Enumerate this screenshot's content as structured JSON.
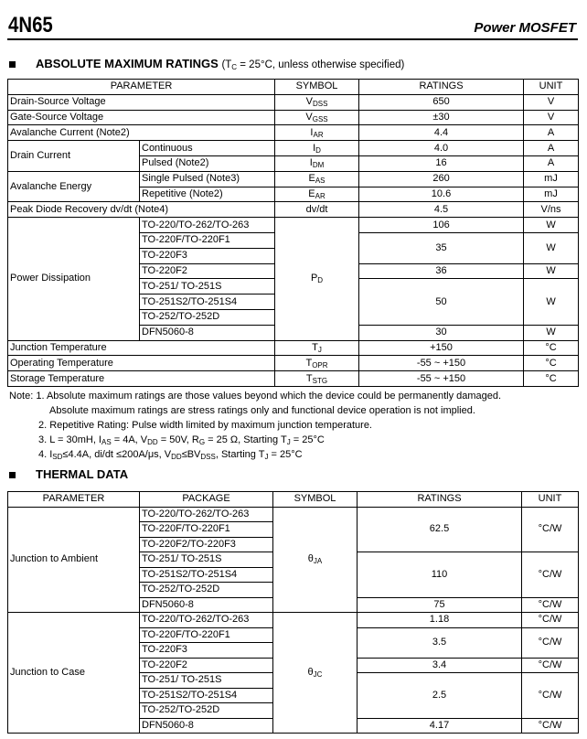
{
  "header": {
    "title": "4N65",
    "subtitle": "Power MOSFET"
  },
  "amr": {
    "heading": "ABSOLUTE MAXIMUM RATINGS",
    "condition": [
      "(T",
      "C",
      " = 25°C, unless otherwise specified)"
    ],
    "columns": [
      "PARAMETER",
      "SYMBOL",
      "RATINGS",
      "UNIT"
    ],
    "rows": [
      {
        "param": "Drain-Source Voltage",
        "symbol": [
          "V",
          "DSS"
        ],
        "rating": "650",
        "unit": "V"
      },
      {
        "param": "Gate-Source Voltage",
        "symbol": [
          "V",
          "GSS"
        ],
        "rating": "±30",
        "unit": "V"
      },
      {
        "param": "Avalanche Current (Note2)",
        "symbol": [
          "I",
          "AR"
        ],
        "rating": "4.4",
        "unit": "A"
      },
      {
        "param": "Drain Current",
        "sub": [
          {
            "cond": "Continuous",
            "symbol": [
              "I",
              "D"
            ],
            "rating": "4.0",
            "unit": "A"
          },
          {
            "cond": "Pulsed (Note2)",
            "symbol": [
              "I",
              "DM"
            ],
            "rating": "16",
            "unit": "A"
          }
        ]
      },
      {
        "param": "Avalanche Energy",
        "sub": [
          {
            "cond": "Single Pulsed (Note3)",
            "symbol": [
              "E",
              "AS"
            ],
            "rating": "260",
            "unit": "mJ"
          },
          {
            "cond": "Repetitive (Note2)",
            "symbol": [
              "E",
              "AR"
            ],
            "rating": "10.6",
            "unit": "mJ"
          }
        ]
      },
      {
        "param": "Peak Diode Recovery dv/dt (Note4)",
        "symbol": [
          "dv/dt",
          ""
        ],
        "rating": "4.5",
        "unit": "V/ns"
      },
      {
        "param": "Power Dissipation",
        "symbol": [
          "P",
          "D"
        ],
        "groups": [
          {
            "packages": [
              "TO-220/TO-262/TO-263"
            ],
            "rating": "106",
            "unit": "W"
          },
          {
            "packages": [
              "TO-220F/TO-220F1",
              "TO-220F3"
            ],
            "rating": "35",
            "unit": "W"
          },
          {
            "packages": [
              "TO-220F2"
            ],
            "rating": "36",
            "unit": "W"
          },
          {
            "packages": [
              "TO-251/ TO-251S",
              "TO-251S2/TO-251S4",
              "TO-252/TO-252D"
            ],
            "rating": "50",
            "unit": "W"
          },
          {
            "packages": [
              "DFN5060-8"
            ],
            "rating": "30",
            "unit": "W"
          }
        ]
      },
      {
        "param": "Junction Temperature",
        "symbol": [
          "T",
          "J"
        ],
        "rating": "+150",
        "unit": "°C"
      },
      {
        "param": "Operating Temperature",
        "symbol": [
          "T",
          "OPR"
        ],
        "rating": "-55 ~ +150",
        "unit": "°C"
      },
      {
        "param": "Storage Temperature",
        "symbol": [
          "T",
          "STG"
        ],
        "rating": "-55 ~ +150",
        "unit": "°C"
      }
    ]
  },
  "notes": [
    [
      "Note: 1. Absolute maximum ratings are those values beyond which the device could be permanently damaged."
    ],
    [
      "Absolute maximum ratings are stress ratings only and functional device operation is not implied."
    ],
    [
      "2. Repetitive Rating: Pulse width limited by maximum junction temperature."
    ],
    [
      "3. L = 30mH, I",
      "AS",
      " = 4A, V",
      "DD",
      " = 50V, R",
      "G",
      " = 25 Ω, Starting T",
      "J",
      " = 25°C"
    ],
    [
      "4. I",
      "SD",
      "≤4.4A, di/dt ≤200A/μs, V",
      "DD",
      "≤BV",
      "DSS",
      ", Starting T",
      "J",
      " = 25°C"
    ]
  ],
  "thermal": {
    "heading": "THERMAL DATA",
    "columns": [
      "PARAMETER",
      "PACKAGE",
      "SYMBOL",
      "RATINGS",
      "UNIT"
    ],
    "rows": [
      {
        "param": "Junction to Ambient",
        "symbol": [
          "θ",
          "JA"
        ],
        "groups": [
          {
            "packages": [
              "TO-220/TO-262/TO-263",
              "TO-220F/TO-220F1",
              "TO-220F2/TO-220F3"
            ],
            "rating": "62.5",
            "unit": "°C/W"
          },
          {
            "packages": [
              "TO-251/ TO-251S",
              "TO-251S2/TO-251S4",
              "TO-252/TO-252D"
            ],
            "rating": "110",
            "unit": "°C/W"
          },
          {
            "packages": [
              "DFN5060-8"
            ],
            "rating": "75",
            "unit": "°C/W"
          }
        ]
      },
      {
        "param": "Junction to Case",
        "symbol": [
          "θ",
          "JC"
        ],
        "groups": [
          {
            "packages": [
              "TO-220/TO-262/TO-263"
            ],
            "rating": "1.18",
            "unit": "°C/W"
          },
          {
            "packages": [
              "TO-220F/TO-220F1",
              "TO-220F3"
            ],
            "rating": "3.5",
            "unit": "°C/W"
          },
          {
            "packages": [
              "TO-220F2"
            ],
            "rating": "3.4",
            "unit": "°C/W"
          },
          {
            "packages": [
              "TO-251/ TO-251S",
              "TO-251S2/TO-251S4",
              "TO-252/TO-252D"
            ],
            "rating": "2.5",
            "unit": "°C/W"
          },
          {
            "packages": [
              "DFN5060-8"
            ],
            "rating": "4.17",
            "unit": "°C/W"
          }
        ]
      }
    ]
  }
}
